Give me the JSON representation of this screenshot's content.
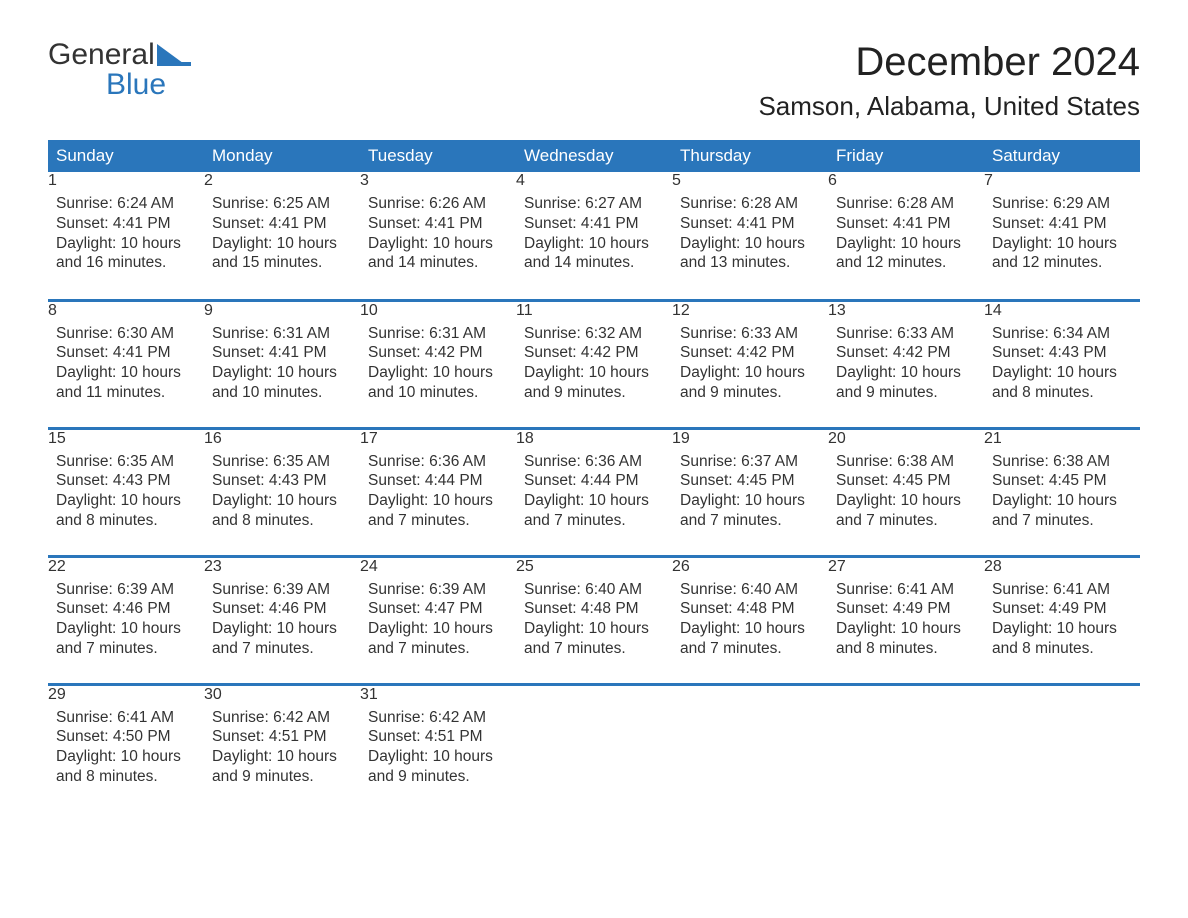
{
  "brand": {
    "word1": "General",
    "word2": "Blue",
    "logo_color": "#2a76bb",
    "text_color_top": "#333333"
  },
  "title": "December 2024",
  "location": "Samson, Alabama, United States",
  "colors": {
    "header_bg": "#2a76bb",
    "header_text": "#ffffff",
    "daynum_bg": "#ebebeb",
    "daynum_text": "#555555",
    "body_text": "#333333",
    "row_border": "#2a76bb",
    "page_bg": "#ffffff"
  },
  "day_headers": [
    "Sunday",
    "Monday",
    "Tuesday",
    "Wednesday",
    "Thursday",
    "Friday",
    "Saturday"
  ],
  "weeks": [
    [
      {
        "num": "1",
        "sunrise": "Sunrise: 6:24 AM",
        "sunset": "Sunset: 4:41 PM",
        "daylight": "Daylight: 10 hours and 16 minutes."
      },
      {
        "num": "2",
        "sunrise": "Sunrise: 6:25 AM",
        "sunset": "Sunset: 4:41 PM",
        "daylight": "Daylight: 10 hours and 15 minutes."
      },
      {
        "num": "3",
        "sunrise": "Sunrise: 6:26 AM",
        "sunset": "Sunset: 4:41 PM",
        "daylight": "Daylight: 10 hours and 14 minutes."
      },
      {
        "num": "4",
        "sunrise": "Sunrise: 6:27 AM",
        "sunset": "Sunset: 4:41 PM",
        "daylight": "Daylight: 10 hours and 14 minutes."
      },
      {
        "num": "5",
        "sunrise": "Sunrise: 6:28 AM",
        "sunset": "Sunset: 4:41 PM",
        "daylight": "Daylight: 10 hours and 13 minutes."
      },
      {
        "num": "6",
        "sunrise": "Sunrise: 6:28 AM",
        "sunset": "Sunset: 4:41 PM",
        "daylight": "Daylight: 10 hours and 12 minutes."
      },
      {
        "num": "7",
        "sunrise": "Sunrise: 6:29 AM",
        "sunset": "Sunset: 4:41 PM",
        "daylight": "Daylight: 10 hours and 12 minutes."
      }
    ],
    [
      {
        "num": "8",
        "sunrise": "Sunrise: 6:30 AM",
        "sunset": "Sunset: 4:41 PM",
        "daylight": "Daylight: 10 hours and 11 minutes."
      },
      {
        "num": "9",
        "sunrise": "Sunrise: 6:31 AM",
        "sunset": "Sunset: 4:41 PM",
        "daylight": "Daylight: 10 hours and 10 minutes."
      },
      {
        "num": "10",
        "sunrise": "Sunrise: 6:31 AM",
        "sunset": "Sunset: 4:42 PM",
        "daylight": "Daylight: 10 hours and 10 minutes."
      },
      {
        "num": "11",
        "sunrise": "Sunrise: 6:32 AM",
        "sunset": "Sunset: 4:42 PM",
        "daylight": "Daylight: 10 hours and 9 minutes."
      },
      {
        "num": "12",
        "sunrise": "Sunrise: 6:33 AM",
        "sunset": "Sunset: 4:42 PM",
        "daylight": "Daylight: 10 hours and 9 minutes."
      },
      {
        "num": "13",
        "sunrise": "Sunrise: 6:33 AM",
        "sunset": "Sunset: 4:42 PM",
        "daylight": "Daylight: 10 hours and 9 minutes."
      },
      {
        "num": "14",
        "sunrise": "Sunrise: 6:34 AM",
        "sunset": "Sunset: 4:43 PM",
        "daylight": "Daylight: 10 hours and 8 minutes."
      }
    ],
    [
      {
        "num": "15",
        "sunrise": "Sunrise: 6:35 AM",
        "sunset": "Sunset: 4:43 PM",
        "daylight": "Daylight: 10 hours and 8 minutes."
      },
      {
        "num": "16",
        "sunrise": "Sunrise: 6:35 AM",
        "sunset": "Sunset: 4:43 PM",
        "daylight": "Daylight: 10 hours and 8 minutes."
      },
      {
        "num": "17",
        "sunrise": "Sunrise: 6:36 AM",
        "sunset": "Sunset: 4:44 PM",
        "daylight": "Daylight: 10 hours and 7 minutes."
      },
      {
        "num": "18",
        "sunrise": "Sunrise: 6:36 AM",
        "sunset": "Sunset: 4:44 PM",
        "daylight": "Daylight: 10 hours and 7 minutes."
      },
      {
        "num": "19",
        "sunrise": "Sunrise: 6:37 AM",
        "sunset": "Sunset: 4:45 PM",
        "daylight": "Daylight: 10 hours and 7 minutes."
      },
      {
        "num": "20",
        "sunrise": "Sunrise: 6:38 AM",
        "sunset": "Sunset: 4:45 PM",
        "daylight": "Daylight: 10 hours and 7 minutes."
      },
      {
        "num": "21",
        "sunrise": "Sunrise: 6:38 AM",
        "sunset": "Sunset: 4:45 PM",
        "daylight": "Daylight: 10 hours and 7 minutes."
      }
    ],
    [
      {
        "num": "22",
        "sunrise": "Sunrise: 6:39 AM",
        "sunset": "Sunset: 4:46 PM",
        "daylight": "Daylight: 10 hours and 7 minutes."
      },
      {
        "num": "23",
        "sunrise": "Sunrise: 6:39 AM",
        "sunset": "Sunset: 4:46 PM",
        "daylight": "Daylight: 10 hours and 7 minutes."
      },
      {
        "num": "24",
        "sunrise": "Sunrise: 6:39 AM",
        "sunset": "Sunset: 4:47 PM",
        "daylight": "Daylight: 10 hours and 7 minutes."
      },
      {
        "num": "25",
        "sunrise": "Sunrise: 6:40 AM",
        "sunset": "Sunset: 4:48 PM",
        "daylight": "Daylight: 10 hours and 7 minutes."
      },
      {
        "num": "26",
        "sunrise": "Sunrise: 6:40 AM",
        "sunset": "Sunset: 4:48 PM",
        "daylight": "Daylight: 10 hours and 7 minutes."
      },
      {
        "num": "27",
        "sunrise": "Sunrise: 6:41 AM",
        "sunset": "Sunset: 4:49 PM",
        "daylight": "Daylight: 10 hours and 8 minutes."
      },
      {
        "num": "28",
        "sunrise": "Sunrise: 6:41 AM",
        "sunset": "Sunset: 4:49 PM",
        "daylight": "Daylight: 10 hours and 8 minutes."
      }
    ],
    [
      {
        "num": "29",
        "sunrise": "Sunrise: 6:41 AM",
        "sunset": "Sunset: 4:50 PM",
        "daylight": "Daylight: 10 hours and 8 minutes."
      },
      {
        "num": "30",
        "sunrise": "Sunrise: 6:42 AM",
        "sunset": "Sunset: 4:51 PM",
        "daylight": "Daylight: 10 hours and 9 minutes."
      },
      {
        "num": "31",
        "sunrise": "Sunrise: 6:42 AM",
        "sunset": "Sunset: 4:51 PM",
        "daylight": "Daylight: 10 hours and 9 minutes."
      },
      null,
      null,
      null,
      null
    ]
  ]
}
